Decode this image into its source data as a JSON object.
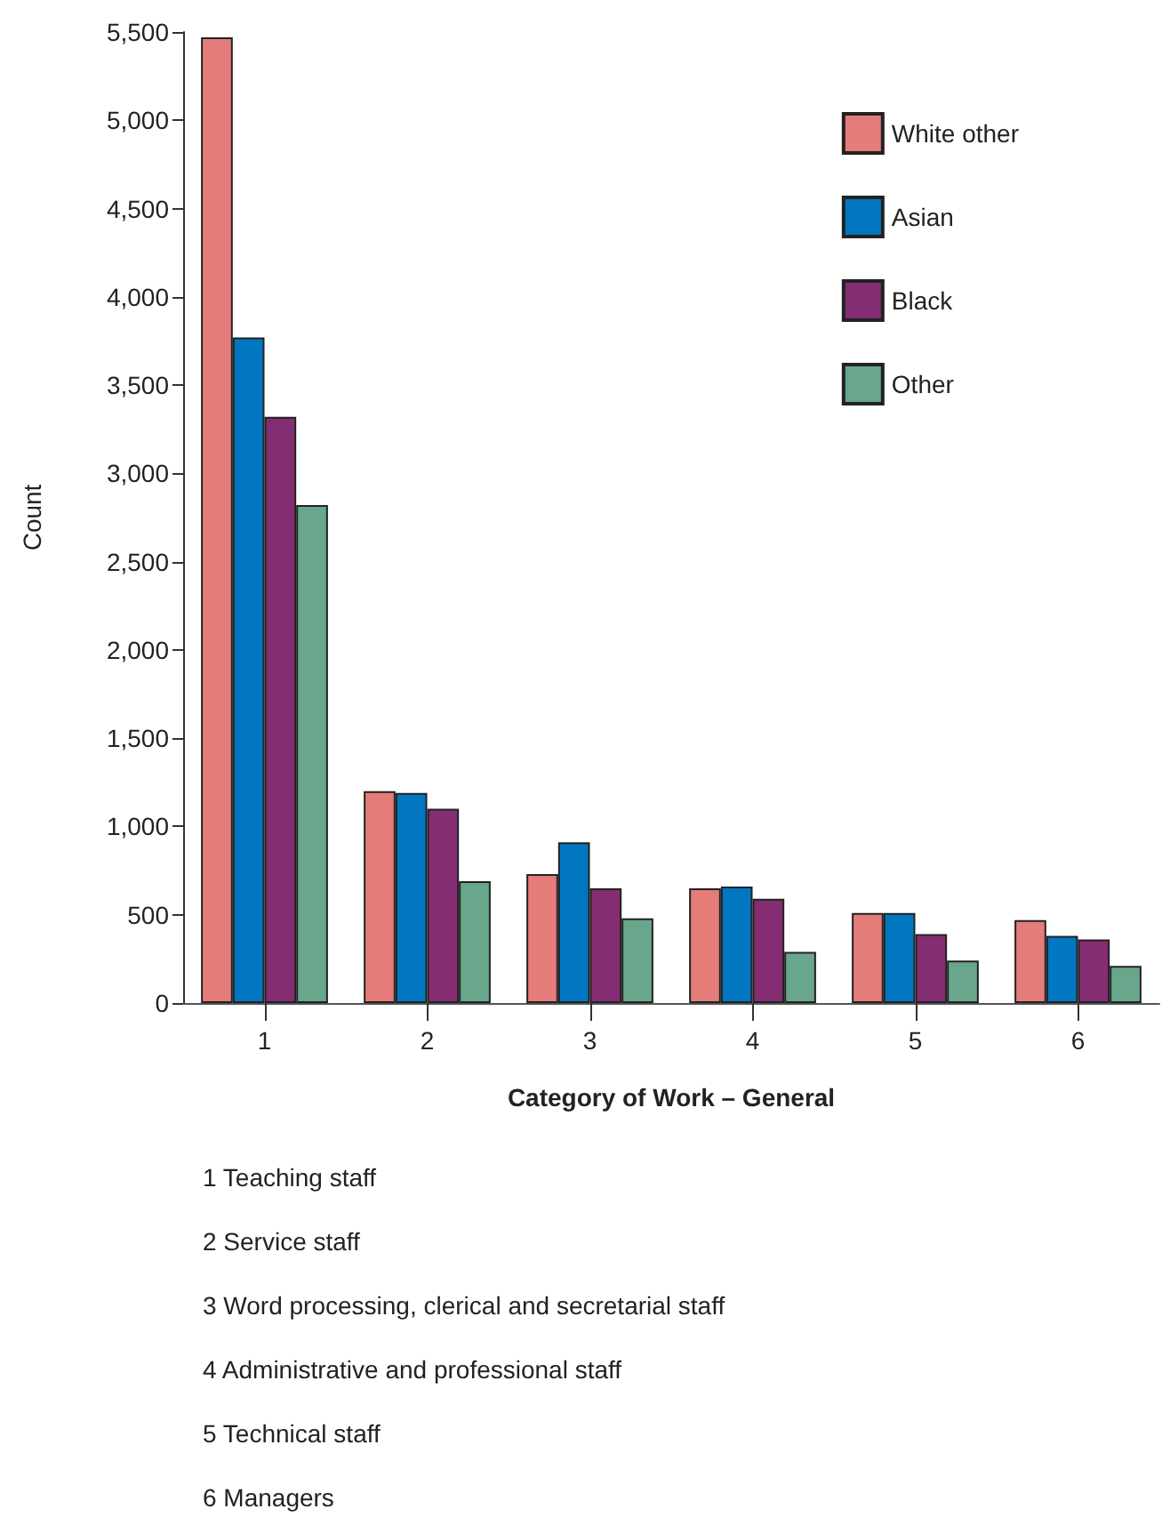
{
  "chart_data": {
    "type": "bar",
    "xlabel": "Category of Work – General",
    "ylabel": "Count",
    "categories": [
      "1",
      "2",
      "3",
      "4",
      "5",
      "6"
    ],
    "series": [
      {
        "name": "White other",
        "color": "#e47c7a",
        "values": [
          5470,
          1200,
          730,
          650,
          510,
          470
        ]
      },
      {
        "name": "Asian",
        "color": "#0077c0",
        "values": [
          3770,
          1190,
          910,
          660,
          510,
          380
        ]
      },
      {
        "name": "Black",
        "color": "#842d72",
        "values": [
          3320,
          1100,
          650,
          590,
          390,
          360
        ]
      },
      {
        "name": "Other",
        "color": "#68a78b",
        "values": [
          2820,
          690,
          480,
          290,
          240,
          210
        ]
      }
    ],
    "ylim": [
      0,
      5500
    ],
    "yticks": [
      0,
      500,
      {
        "value": 1000,
        "label": "1,000"
      },
      {
        "value": 1500,
        "label": "1,500"
      },
      {
        "value": 2000,
        "label": "2,000"
      },
      {
        "value": 2500,
        "label": "2,500"
      },
      {
        "value": 3000,
        "label": "3,000"
      },
      {
        "value": 3500,
        "label": "3,500"
      },
      {
        "value": 4000,
        "label": "4,000"
      },
      {
        "value": 4500,
        "label": "4,500"
      },
      {
        "value": 5000,
        "label": "5,000"
      },
      {
        "value": 5500,
        "label": "5,500"
      }
    ],
    "grid": false,
    "legend": "top right",
    "annotations": [
      "1 Teaching staff",
      "2 Service staff",
      "3 Word processing, clerical and secretarial staff",
      "4 Administrative and professional staff",
      "5 Technical staff",
      "6 Managers"
    ]
  }
}
